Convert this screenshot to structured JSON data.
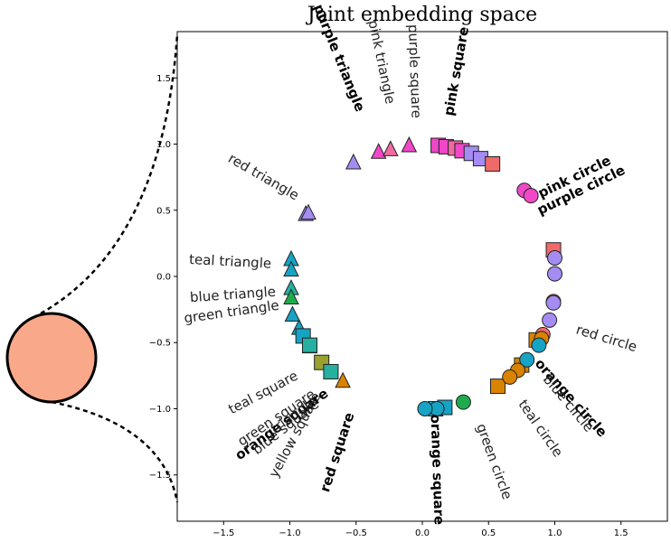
{
  "chart_data": {
    "type": "scatter",
    "title": "Joint embedding space",
    "xlabel": "",
    "ylabel": "",
    "xlim": [
      -1.85,
      1.85
    ],
    "ylim": [
      -1.85,
      1.85
    ],
    "x_ticks": [
      -1.5,
      -1.0,
      -0.5,
      0.0,
      0.5,
      1.0,
      1.5
    ],
    "y_ticks": [
      -1.5,
      -1.0,
      -0.5,
      0.0,
      0.5,
      1.0,
      1.5
    ],
    "grid": false,
    "legend": "none",
    "colors": {
      "red": "#f06a6a",
      "orange": "#d98300",
      "yellow": "#9aa12f",
      "green": "#1eab4e",
      "teal": "#26b0a0",
      "blue": "#16a3c4",
      "purple": "#a58cf2",
      "pink": "#f048c8",
      "magenta": "#f046c8",
      "outline_circle_fill": "#f9a98a"
    },
    "points": [
      {
        "shape": "triangle",
        "x": -0.52,
        "y": 0.86,
        "color": "#a58cf2"
      },
      {
        "shape": "triangle",
        "x": -0.33,
        "y": 0.94,
        "color": "#f048c8"
      },
      {
        "shape": "triangle",
        "x": -0.24,
        "y": 0.96,
        "color": "#f06aa0"
      },
      {
        "shape": "triangle",
        "x": -0.1,
        "y": 0.99,
        "color": "#f048c8"
      },
      {
        "shape": "triangle",
        "x": -0.88,
        "y": 0.47,
        "color": "#a58cf2"
      },
      {
        "shape": "triangle",
        "x": -0.86,
        "y": 0.48,
        "color": "#a58cf2"
      },
      {
        "shape": "triangle",
        "x": -0.99,
        "y": 0.13,
        "color": "#16a3c4"
      },
      {
        "shape": "triangle",
        "x": -0.99,
        "y": 0.05,
        "color": "#16a3c4"
      },
      {
        "shape": "triangle",
        "x": -0.99,
        "y": -0.09,
        "color": "#26b0a0"
      },
      {
        "shape": "triangle",
        "x": -0.99,
        "y": -0.16,
        "color": "#1eab4e"
      },
      {
        "shape": "triangle",
        "x": -0.98,
        "y": -0.29,
        "color": "#16a3c4"
      },
      {
        "shape": "triangle",
        "x": -0.93,
        "y": -0.39,
        "color": "#16a3c4"
      },
      {
        "shape": "triangle",
        "x": -0.85,
        "y": -0.53,
        "color": "#26b0a0"
      },
      {
        "shape": "triangle",
        "x": -0.6,
        "y": -0.79,
        "color": "#d98300"
      },
      {
        "shape": "square",
        "x": -0.9,
        "y": -0.45,
        "color": "#16a3c4"
      },
      {
        "shape": "square",
        "x": -0.85,
        "y": -0.52,
        "color": "#26b0a0"
      },
      {
        "shape": "square",
        "x": -0.76,
        "y": -0.65,
        "color": "#9aa12f"
      },
      {
        "shape": "square",
        "x": -0.69,
        "y": -0.72,
        "color": "#26b0a0"
      },
      {
        "shape": "square",
        "x": 0.12,
        "y": 0.99,
        "color": "#f046c8"
      },
      {
        "shape": "square",
        "x": 0.18,
        "y": 0.98,
        "color": "#f048c8"
      },
      {
        "shape": "square",
        "x": 0.25,
        "y": 0.97,
        "color": "#f06aa0"
      },
      {
        "shape": "square",
        "x": 0.3,
        "y": 0.95,
        "color": "#f048c8"
      },
      {
        "shape": "square",
        "x": 0.37,
        "y": 0.93,
        "color": "#a58cf2"
      },
      {
        "shape": "square",
        "x": 0.44,
        "y": 0.89,
        "color": "#a58cf2"
      },
      {
        "shape": "square",
        "x": 0.53,
        "y": 0.85,
        "color": "#f06a6a"
      },
      {
        "shape": "square",
        "x": 0.99,
        "y": 0.2,
        "color": "#f06a6a"
      },
      {
        "shape": "square",
        "x": 0.86,
        "y": -0.48,
        "color": "#d98300"
      },
      {
        "shape": "square",
        "x": 0.75,
        "y": -0.67,
        "color": "#d98300"
      },
      {
        "shape": "square",
        "x": 0.57,
        "y": -0.83,
        "color": "#d98300"
      },
      {
        "shape": "square",
        "x": 0.1,
        "y": -1.0,
        "color": "#16a3c4"
      },
      {
        "shape": "square",
        "x": 0.17,
        "y": -0.99,
        "color": "#16a3c4"
      },
      {
        "shape": "circle",
        "x": 0.77,
        "y": 0.65,
        "color": "#f048c8"
      },
      {
        "shape": "circle",
        "x": 0.82,
        "y": 0.61,
        "color": "#f048c8"
      },
      {
        "shape": "circle",
        "x": 1.0,
        "y": 0.14,
        "color": "#a58cf2"
      },
      {
        "shape": "circle",
        "x": 1.0,
        "y": 0.02,
        "color": "#a58cf2"
      },
      {
        "shape": "circle",
        "x": 0.99,
        "y": -0.19,
        "color": "#f06a6a"
      },
      {
        "shape": "circle",
        "x": 0.99,
        "y": -0.2,
        "color": "#a58cf2"
      },
      {
        "shape": "circle",
        "x": 0.96,
        "y": -0.33,
        "color": "#a58cf2"
      },
      {
        "shape": "circle",
        "x": 0.91,
        "y": -0.44,
        "color": "#f06a6a"
      },
      {
        "shape": "circle",
        "x": 0.9,
        "y": -0.47,
        "color": "#d98300"
      },
      {
        "shape": "circle",
        "x": 0.88,
        "y": -0.52,
        "color": "#16a3c4"
      },
      {
        "shape": "circle",
        "x": 0.79,
        "y": -0.63,
        "color": "#16a3c4"
      },
      {
        "shape": "circle",
        "x": 0.72,
        "y": -0.71,
        "color": "#d98300"
      },
      {
        "shape": "circle",
        "x": 0.66,
        "y": -0.76,
        "color": "#d98300"
      },
      {
        "shape": "circle",
        "x": 0.31,
        "y": -0.95,
        "color": "#1eab4e"
      },
      {
        "shape": "circle",
        "x": 0.11,
        "y": -1.0,
        "color": "#16a3c4"
      },
      {
        "shape": "circle",
        "x": 0.02,
        "y": -1.0,
        "color": "#16a3c4"
      }
    ],
    "annotations": [
      {
        "text": "purple triangle",
        "x": -0.63,
        "y": 1.65,
        "angle": 68,
        "bold": true
      },
      {
        "text": "pink triangle",
        "x": -0.31,
        "y": 1.62,
        "angle": 78,
        "bold": false
      },
      {
        "text": "purple square",
        "x": -0.06,
        "y": 1.55,
        "angle": 88,
        "bold": false
      },
      {
        "text": "pink square",
        "x": 0.26,
        "y": 1.55,
        "angle": -80,
        "bold": true
      },
      {
        "text": "red triangle",
        "x": -1.2,
        "y": 0.75,
        "angle": 30,
        "bold": false
      },
      {
        "text": "pink circle",
        "x": 1.15,
        "y": 0.75,
        "angle": -26,
        "bold": true
      },
      {
        "text": "purple circle",
        "x": 1.2,
        "y": 0.65,
        "angle": -26,
        "bold": true
      },
      {
        "text": "teal triangle",
        "x": -1.45,
        "y": 0.11,
        "angle": 3,
        "bold": false
      },
      {
        "text": "blue triangle",
        "x": -1.43,
        "y": -0.14,
        "angle": -4,
        "bold": false
      },
      {
        "text": "green triangle",
        "x": -1.44,
        "y": -0.27,
        "angle": -8,
        "bold": false
      },
      {
        "text": "red circle",
        "x": 1.39,
        "y": -0.47,
        "angle": 17,
        "bold": false
      },
      {
        "text": "orange circle",
        "x": 1.12,
        "y": -0.92,
        "angle": 48,
        "bold": true
      },
      {
        "text": "blue circle",
        "x": 1.1,
        "y": -0.96,
        "angle": 50,
        "bold": false
      },
      {
        "text": "teal circle",
        "x": 0.89,
        "y": -1.15,
        "angle": 55,
        "bold": false
      },
      {
        "text": "green circle",
        "x": 0.54,
        "y": -1.4,
        "angle": 70,
        "bold": false
      },
      {
        "text": "orange square",
        "x": 0.11,
        "y": -1.46,
        "angle": 88,
        "bold": true
      },
      {
        "text": "red square",
        "x": -0.64,
        "y": -1.33,
        "angle": -72,
        "bold": true
      },
      {
        "text": "yellow square",
        "x": -0.96,
        "y": -1.2,
        "angle": -62,
        "bold": false
      },
      {
        "text": "teal square",
        "x": -1.2,
        "y": -0.88,
        "angle": -28,
        "bold": false
      },
      {
        "text": "green square",
        "x": -1.1,
        "y": -1.07,
        "angle": -34,
        "bold": false
      },
      {
        "text": "orange square",
        "x": -1.06,
        "y": -1.12,
        "angle": -36,
        "bold": true
      },
      {
        "text": "blue square",
        "x": -1.03,
        "y": -1.14,
        "angle": -38,
        "bold": false
      },
      {
        "text": "triangle",
        "x": -0.97,
        "y": -1.05,
        "angle": -36,
        "bold": false
      }
    ]
  }
}
